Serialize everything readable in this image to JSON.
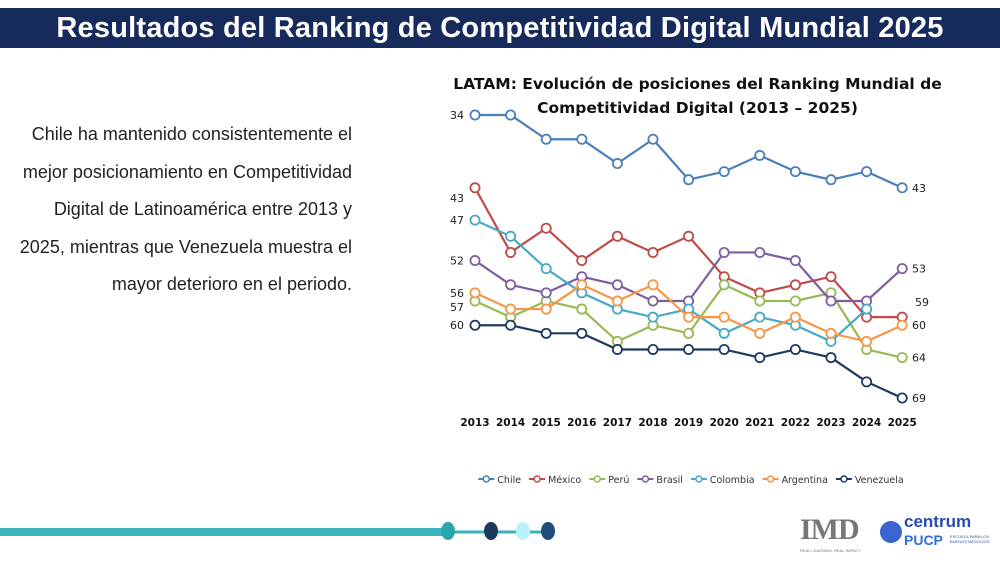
{
  "header": {
    "title": "Resultados del Ranking de Competitividad Digital Mundial 2025"
  },
  "body_text": "Chile ha mantenido consistentemente el mejor posicionamiento en Competitividad Digital de Latinoamérica entre 2013 y 2025, mientras que Venezuela muestra el mayor deterioro en el periodo.",
  "chart_data": {
    "type": "line",
    "title_line1": "LATAM: Evolución  de posiciones del Ranking Mundial de",
    "title_line2": "Competitividad Digital (2013 – 2025)",
    "categories": [
      "2013",
      "2014",
      "2015",
      "2016",
      "2017",
      "2018",
      "2019",
      "2020",
      "2021",
      "2022",
      "2023",
      "2024",
      "2025"
    ],
    "y_inverted": true,
    "ylim": [
      34,
      69
    ],
    "grid": false,
    "legend_position": "bottom",
    "series": [
      {
        "name": "Chile",
        "color": "#4a7ebb",
        "values": [
          34,
          34,
          37,
          37,
          40,
          37,
          42,
          41,
          39,
          41,
          42,
          41,
          43
        ],
        "start_label": "34",
        "end_label": "43"
      },
      {
        "name": "México",
        "color": "#be4b48",
        "values": [
          43,
          51,
          48,
          52,
          49,
          51,
          49,
          54,
          56,
          55,
          54,
          59,
          59
        ],
        "start_label": "43",
        "end_label": "59"
      },
      {
        "name": "Perú",
        "color": "#98b954",
        "values": [
          57,
          59,
          57,
          58,
          62,
          60,
          61,
          55,
          57,
          57,
          56,
          63,
          64
        ],
        "start_label": "57",
        "end_label": "64"
      },
      {
        "name": "Brasil",
        "color": "#7d5fa0",
        "values": [
          52,
          55,
          56,
          54,
          55,
          57,
          57,
          51,
          51,
          52,
          57,
          57,
          53
        ],
        "start_label": "52",
        "end_label": "53"
      },
      {
        "name": "Colombia",
        "color": "#46aac5",
        "values": [
          47,
          49,
          53,
          56,
          58,
          59,
          58,
          61,
          59,
          60,
          62,
          58,
          null
        ],
        "start_label": "47",
        "end_label": null
      },
      {
        "name": "Argentina",
        "color": "#f79646",
        "values": [
          56,
          58,
          58,
          55,
          57,
          55,
          59,
          59,
          61,
          59,
          61,
          62,
          60
        ],
        "start_label": "56",
        "end_label": "60"
      },
      {
        "name": "Venezuela",
        "color": "#1f3a60",
        "values": [
          60,
          60,
          61,
          61,
          63,
          63,
          63,
          63,
          64,
          63,
          64,
          67,
          69
        ],
        "start_label": "60",
        "end_label": "69"
      }
    ]
  },
  "decoration_colors": [
    "#3bb3bd",
    "#1c3a5c",
    "#b8f2f8",
    "#1f4e79"
  ],
  "logos": {
    "imd": "IMD",
    "imd_tagline": "REAL LEARNING. REAL IMPACT",
    "centrum": "centrum",
    "pucp": "PUCP",
    "pucp_tagline": "ESCUELA PARA LOS BUENOS NEGOCIOS"
  }
}
